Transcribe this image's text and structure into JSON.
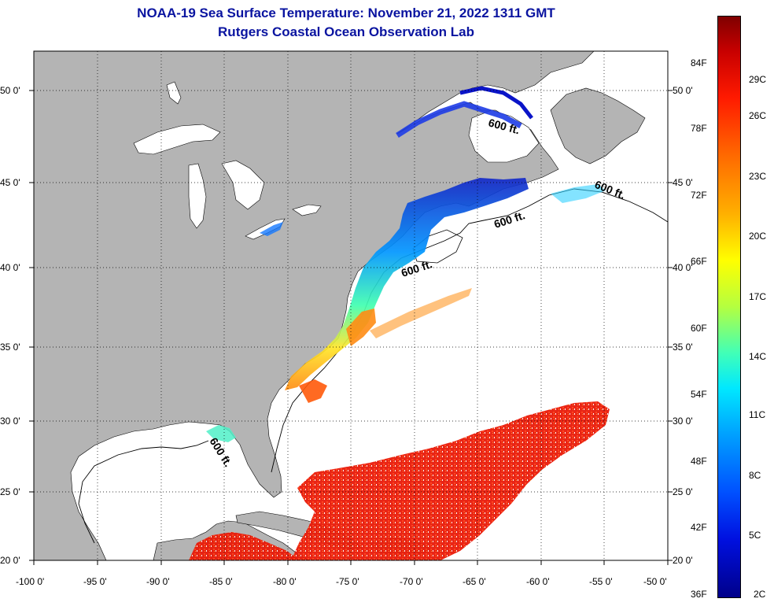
{
  "title_line1": "NOAA-19 Sea Surface Temperature:  November 21, 2022 1311 GMT",
  "title_line2": "Rutgers Coastal Ocean Observation Lab",
  "lat_labels": [
    "50 0'",
    "45 0'",
    "40 0'",
    "35 0'",
    "30 0'",
    "25 0'",
    "20 0'"
  ],
  "lon_labels": [
    "-100 0'",
    "-95 0'",
    "-90 0'",
    "-85 0'",
    "-80 0'",
    "-75 0'",
    "-70 0'",
    "-65 0'",
    "-60 0'",
    "-55 0'",
    "-50 0'"
  ],
  "depth_contour_label": "600 ft.",
  "colorbar": {
    "fahrenheit": [
      "84F",
      "78F",
      "72F",
      "66F",
      "60F",
      "54F",
      "48F",
      "42F",
      "36F"
    ],
    "celsius": [
      "29C",
      "26C",
      "23C",
      "20C",
      "17C",
      "14C",
      "11C",
      "8C",
      "5C",
      "2C"
    ]
  },
  "colors": {
    "land": "#b4b4b4",
    "title": "#0a14a0",
    "grid": "#000000"
  }
}
